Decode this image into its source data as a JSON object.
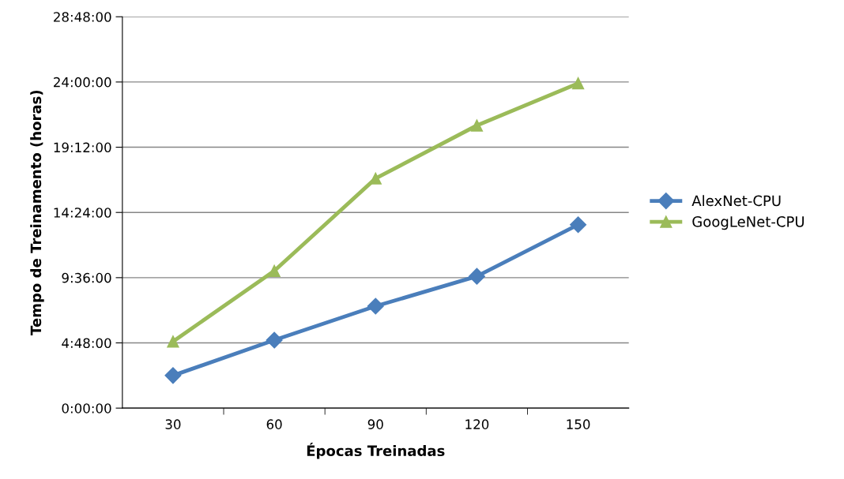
{
  "chart_data": {
    "type": "line",
    "xlabel": "Épocas Treinadas",
    "ylabel": "Tempo de Treinamento (horas)",
    "categories": [
      "30",
      "60",
      "90",
      "120",
      "150"
    ],
    "series": [
      {
        "name": "AlexNet-CPU",
        "color": "#4a7ebb",
        "marker": "diamond",
        "values": [
          2.4,
          5.0,
          7.5,
          9.7,
          13.5
        ]
      },
      {
        "name": "GoogLeNet-CPU",
        "color": "#9bbb59",
        "marker": "triangle",
        "values": [
          4.9,
          10.1,
          16.9,
          20.8,
          23.9
        ]
      }
    ],
    "ylim": [
      0,
      28.8
    ],
    "yticks": [
      {
        "value": 0,
        "label": "0:00:00"
      },
      {
        "value": 4.8,
        "label": "4:48:00"
      },
      {
        "value": 9.6,
        "label": "9:36:00"
      },
      {
        "value": 14.4,
        "label": "14:24:00"
      },
      {
        "value": 19.2,
        "label": "19:12:00"
      },
      {
        "value": 24,
        "label": "24:00:00"
      },
      {
        "value": 28.8,
        "label": "28:48:00"
      }
    ],
    "grid": "y",
    "legend": "right",
    "line_style": "solid"
  }
}
